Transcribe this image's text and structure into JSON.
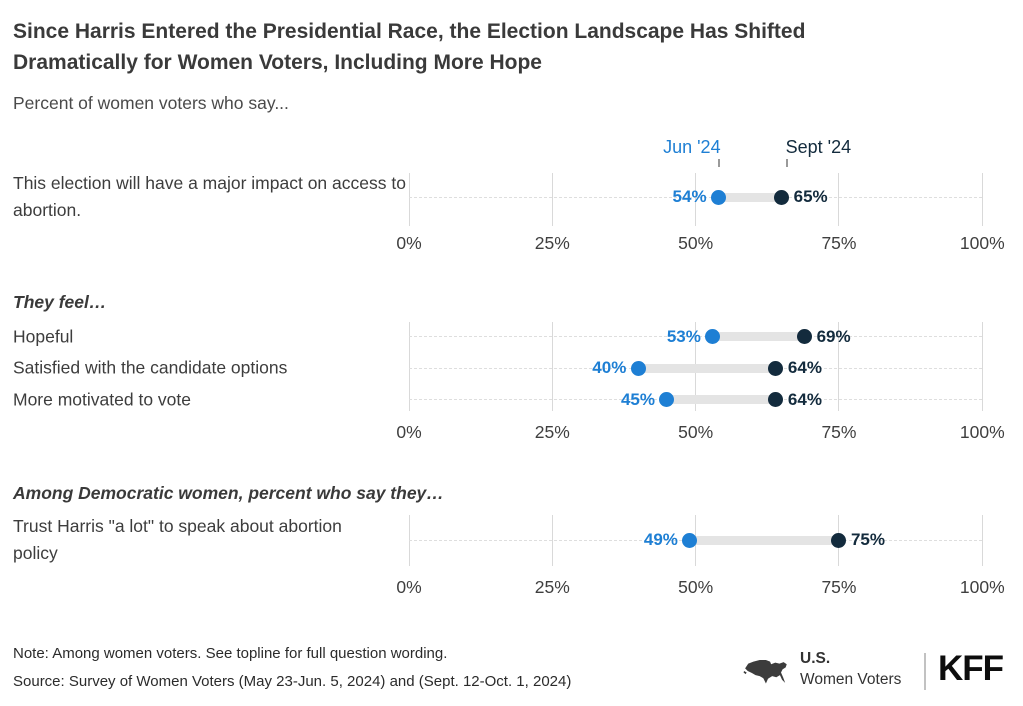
{
  "title": "Since Harris Entered the Presidential Race, the Election Landscape Has Shifted Dramatically for Women Voters, Including More Hope",
  "subtitle": "Percent of women voters who say...",
  "legend": {
    "jun_label": "Jun '24",
    "sept_label": "Sept '24"
  },
  "colors": {
    "jun": "#1E7FD4",
    "sept": "#132B3D",
    "connector_bar": "#E4E4E4",
    "gridline": "#D9D9D9",
    "row_dash": "#DEDEDE",
    "axis_text": "#3F3F3F"
  },
  "chart_data": [
    {
      "type": "scatter",
      "variant": "dumbbell",
      "section_header": null,
      "categories": [
        "This election will have a major impact on access to abortion."
      ],
      "series": [
        {
          "name": "Jun '24",
          "values": [
            54
          ]
        },
        {
          "name": "Sept '24",
          "values": [
            65
          ]
        }
      ],
      "xlim": [
        0,
        100
      ],
      "x_tick_labels": [
        "0%",
        "25%",
        "50%",
        "75%",
        "100%"
      ],
      "grid": true,
      "legend_position": "top"
    },
    {
      "type": "scatter",
      "variant": "dumbbell",
      "section_header": "They feel…",
      "categories": [
        "Hopeful",
        "Satisfied with the candidate options",
        "More motivated to vote"
      ],
      "series": [
        {
          "name": "Jun '24",
          "values": [
            53,
            40,
            45
          ]
        },
        {
          "name": "Sept '24",
          "values": [
            69,
            64,
            64
          ]
        }
      ],
      "xlim": [
        0,
        100
      ],
      "x_tick_labels": [
        "0%",
        "25%",
        "50%",
        "75%",
        "100%"
      ],
      "grid": true
    },
    {
      "type": "scatter",
      "variant": "dumbbell",
      "section_header": "Among Democratic women, percent who say they…",
      "categories": [
        "Trust Harris \"a lot\" to speak about abortion policy"
      ],
      "series": [
        {
          "name": "Jun '24",
          "values": [
            49
          ]
        },
        {
          "name": "Sept '24",
          "values": [
            75
          ]
        }
      ],
      "xlim": [
        0,
        100
      ],
      "x_tick_labels": [
        "0%",
        "25%",
        "50%",
        "75%",
        "100%"
      ],
      "grid": true
    }
  ],
  "footer": {
    "note": "Note: Among women voters. See topline for full question wording.",
    "source": "Source: Survey of Women Voters (May 23-Jun. 5, 2024) and (Sept. 12-Oct. 1, 2024)",
    "brand": {
      "us": "U.S.",
      "women_voters": "Women Voters",
      "kff": "KFF"
    }
  }
}
